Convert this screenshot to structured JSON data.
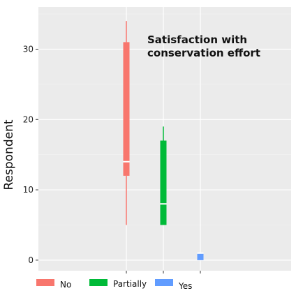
{
  "chart_data": {
    "type": "boxplot",
    "title": "",
    "xlabel": "",
    "ylabel": "Respondent",
    "ylim": [
      -1.5,
      36
    ],
    "yticks": [
      0,
      10,
      20,
      30
    ],
    "grid": true,
    "legend_position": "bottom",
    "annotation": [
      "Satisfaction with",
      "conservation effort"
    ],
    "series": [
      {
        "name": "No",
        "color": "#F8766D",
        "min": 5,
        "q1": 12,
        "median": 14,
        "q3": 31,
        "max": 34
      },
      {
        "name": "Partially",
        "color": "#00BA38",
        "min": 5,
        "q1": 5,
        "median": 8,
        "q3": 17,
        "max": 19
      },
      {
        "name": "Yes",
        "color": "#619CFF",
        "min": 0,
        "q1": 0,
        "median": 1,
        "q3": 1,
        "max": 1
      }
    ]
  }
}
